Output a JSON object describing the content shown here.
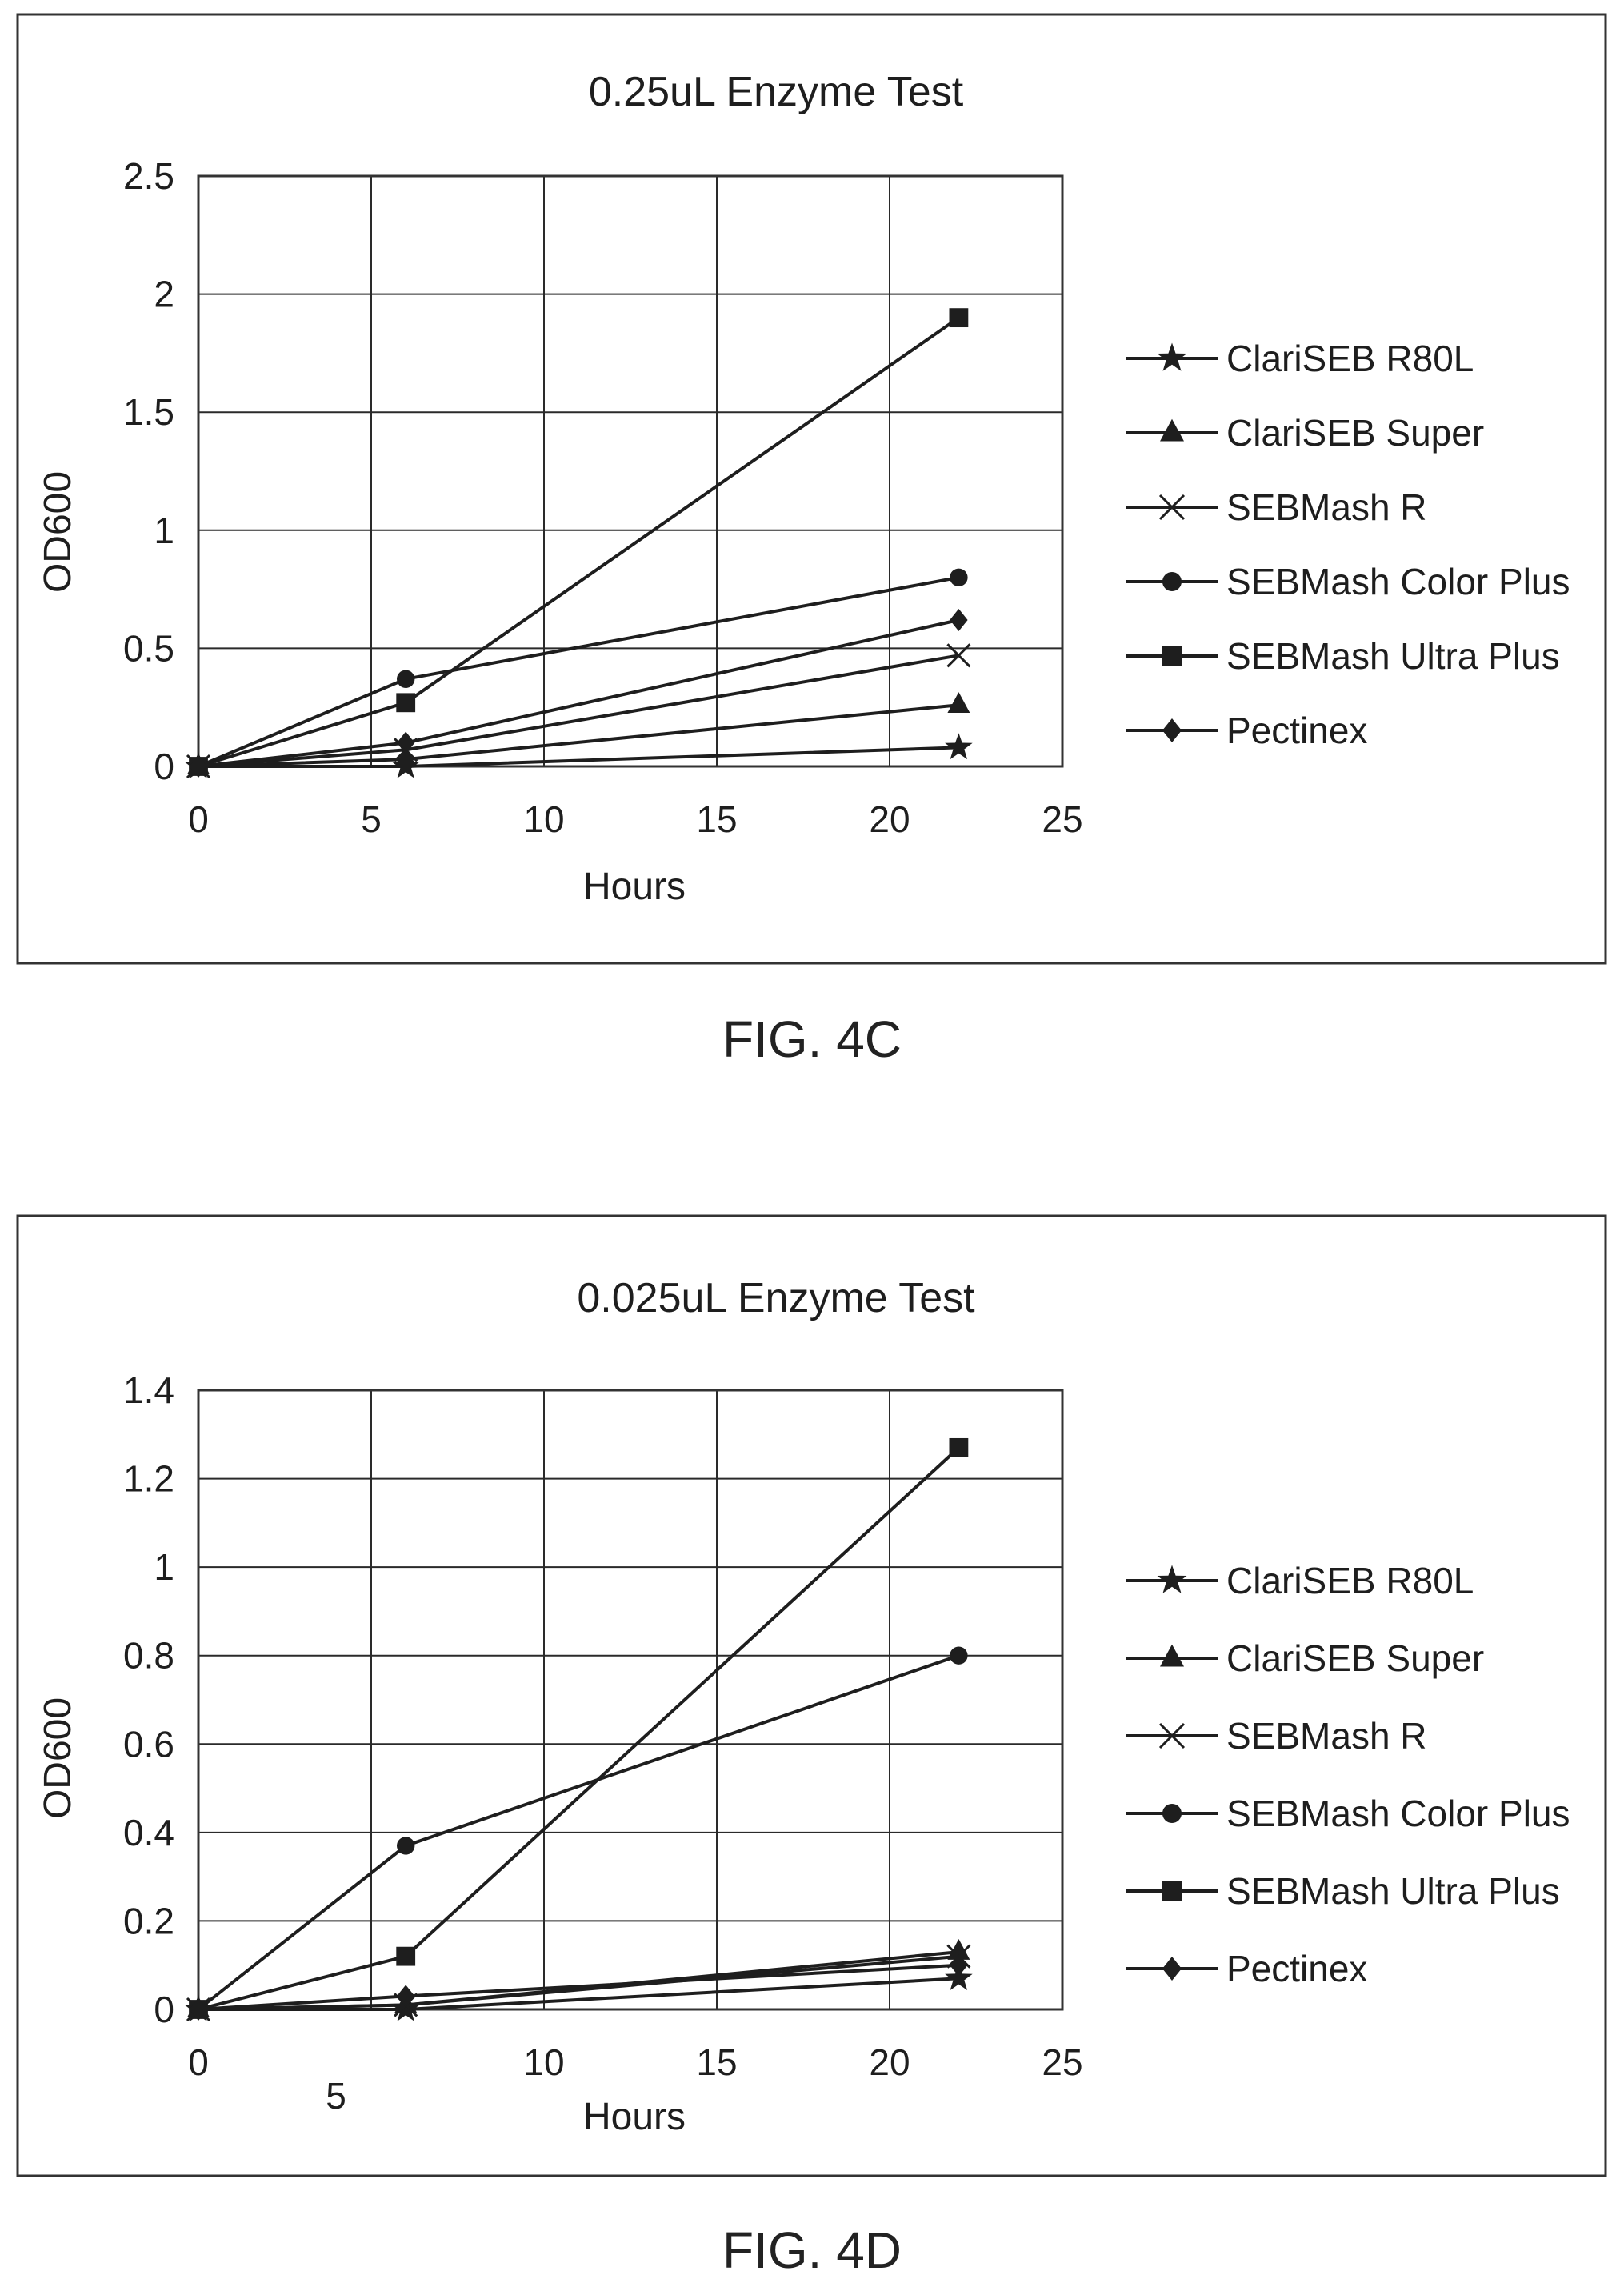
{
  "chart_data": [
    {
      "type": "line",
      "title": "0.25uL Enzyme Test",
      "xlabel": "Hours",
      "ylabel": "OD600",
      "xlim": [
        0,
        25
      ],
      "ylim": [
        0,
        2.5
      ],
      "x_ticks": [
        "0",
        "5",
        "10",
        "15",
        "20",
        "25"
      ],
      "y_ticks": [
        "0",
        "0.5",
        "1",
        "1.5",
        "2",
        "2.5"
      ],
      "grid": true,
      "legend_position": "right",
      "x": [
        0,
        6,
        22
      ],
      "series": [
        {
          "name": "ClariSEB R80L",
          "marker": "star",
          "values": [
            0,
            0,
            0.08
          ]
        },
        {
          "name": "ClariSEB Super",
          "marker": "triangle",
          "values": [
            0,
            0.03,
            0.26
          ]
        },
        {
          "name": "SEBMash R",
          "marker": "x",
          "values": [
            0,
            0.07,
            0.47
          ]
        },
        {
          "name": "SEBMash Color Plus",
          "marker": "circle",
          "values": [
            0,
            0.37,
            0.8
          ]
        },
        {
          "name": "SEBMash Ultra Plus",
          "marker": "square",
          "values": [
            0,
            0.27,
            1.9
          ]
        },
        {
          "name": "Pectinex",
          "marker": "diamond",
          "values": [
            0,
            0.1,
            0.62
          ]
        }
      ]
    },
    {
      "type": "line",
      "title": "0.025uL Enzyme Test",
      "xlabel": "Hours",
      "ylabel": "OD600",
      "xlim": [
        0,
        25
      ],
      "ylim": [
        0,
        1.4
      ],
      "x_ticks": [
        "0",
        "5",
        "10",
        "15",
        "20",
        "25"
      ],
      "y_ticks": [
        "0",
        "0.2",
        "0.4",
        "0.6",
        "0.8",
        "1",
        "1.2",
        "1.4"
      ],
      "grid": true,
      "legend_position": "right",
      "x": [
        0,
        6,
        22
      ],
      "series": [
        {
          "name": "ClariSEB R80L",
          "marker": "star",
          "values": [
            0,
            0,
            0.07
          ]
        },
        {
          "name": "ClariSEB Super",
          "marker": "triangle",
          "values": [
            0,
            0.01,
            0.13
          ]
        },
        {
          "name": "SEBMash R",
          "marker": "x",
          "values": [
            0,
            0.01,
            0.12
          ]
        },
        {
          "name": "SEBMash Color Plus",
          "marker": "circle",
          "values": [
            0,
            0.37,
            0.8
          ]
        },
        {
          "name": "SEBMash Ultra Plus",
          "marker": "square",
          "values": [
            0,
            0.12,
            1.27
          ]
        },
        {
          "name": "Pectinex",
          "marker": "diamond",
          "values": [
            0,
            0.03,
            0.1
          ]
        }
      ]
    }
  ],
  "captions": [
    "FIG. 4C",
    "FIG. 4D"
  ],
  "colors": {
    "line": "#1e1e1e",
    "grid": "#2a2a2a",
    "frame": "#333333"
  }
}
